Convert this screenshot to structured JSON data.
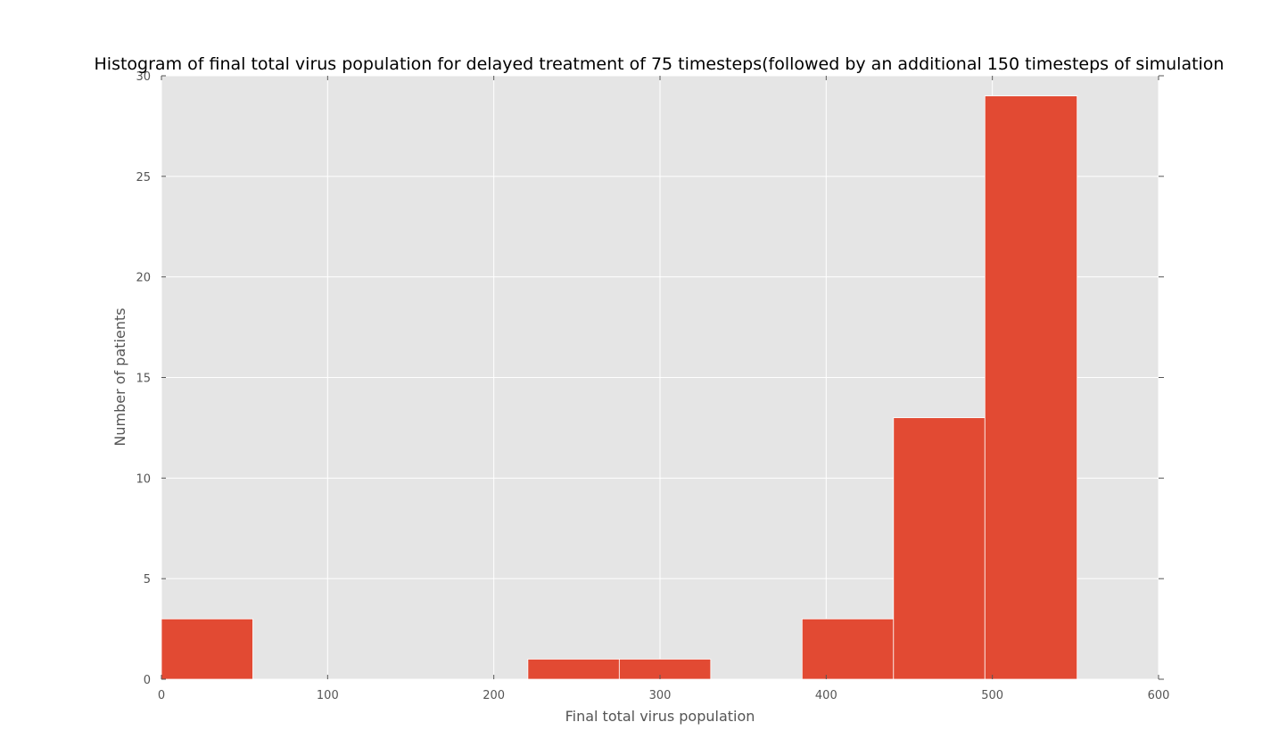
{
  "chart_data": {
    "type": "bar",
    "title": "Histogram of final total virus population for delayed treatment of 75 timesteps(followed by an additional 150 timesteps of simulation",
    "xlabel": "Final total virus population",
    "ylabel": "Number of patients",
    "xlim": [
      0,
      600
    ],
    "ylim": [
      0,
      30
    ],
    "xticks": [
      0,
      100,
      200,
      300,
      400,
      500,
      600
    ],
    "yticks": [
      0,
      5,
      10,
      15,
      20,
      25,
      30
    ],
    "grid": true,
    "bins": [
      {
        "x0": 0,
        "x1": 55,
        "count": 3
      },
      {
        "x0": 55,
        "x1": 110,
        "count": 0
      },
      {
        "x0": 110,
        "x1": 165,
        "count": 0
      },
      {
        "x0": 165,
        "x1": 220.5,
        "count": 0
      },
      {
        "x0": 220.5,
        "x1": 275.5,
        "count": 1
      },
      {
        "x0": 275.5,
        "x1": 330.5,
        "count": 1
      },
      {
        "x0": 330.5,
        "x1": 385.5,
        "count": 0
      },
      {
        "x0": 385.5,
        "x1": 440.5,
        "count": 3
      },
      {
        "x0": 440.5,
        "x1": 495.5,
        "count": 13
      },
      {
        "x0": 495.5,
        "x1": 551,
        "count": 29
      }
    ],
    "colors": {
      "bar": "#e24a33",
      "plot_background": "#e5e5e5",
      "grid": "#ffffff"
    }
  }
}
